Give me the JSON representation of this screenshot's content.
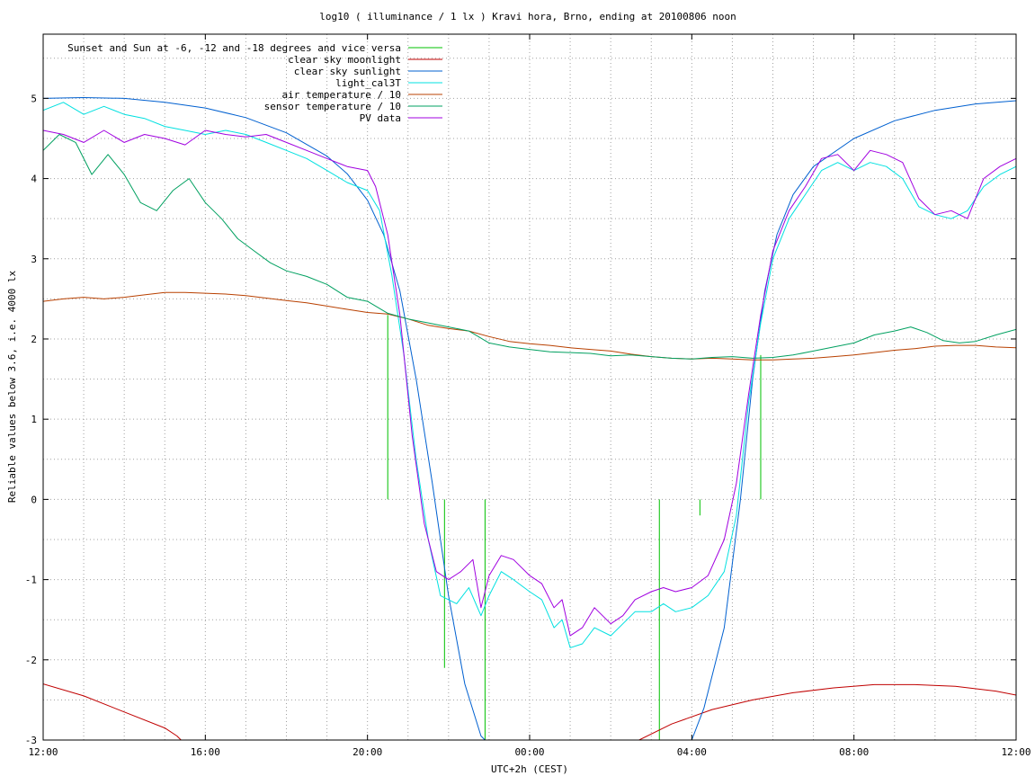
{
  "chart_data": {
    "type": "line",
    "title": "log10 ( illuminance / 1 lx ) Kravi hora, Brno, ending at 20100806 noon",
    "xlabel": "UTC+2h (CEST)",
    "ylabel": "Reliable values below 3.6, i.e. 4000 lx",
    "x_unit": "hours after 12:00",
    "xlim": [
      0,
      24
    ],
    "ylim": [
      -3,
      5.8
    ],
    "x_ticks": [
      {
        "x": 0,
        "label": "12:00"
      },
      {
        "x": 4,
        "label": "16:00"
      },
      {
        "x": 8,
        "label": "20:00"
      },
      {
        "x": 12,
        "label": "00:00"
      },
      {
        "x": 16,
        "label": "04:00"
      },
      {
        "x": 20,
        "label": "08:00"
      },
      {
        "x": 24,
        "label": "12:00"
      }
    ],
    "x_grid_step": 1,
    "y_ticks": [
      {
        "y": -3,
        "label": "-3"
      },
      {
        "y": -2,
        "label": "-2"
      },
      {
        "y": -1,
        "label": "-1"
      },
      {
        "y": 0,
        "label": "0"
      },
      {
        "y": 1,
        "label": "1"
      },
      {
        "y": 2,
        "label": "2"
      },
      {
        "y": 3,
        "label": "3"
      },
      {
        "y": 4,
        "label": "4"
      },
      {
        "y": 5,
        "label": "5"
      }
    ],
    "y_grid_step": 0.5,
    "grid": true,
    "legend_position": "top-left",
    "series": [
      {
        "name": "Sunset and Sun at -6, -12 and -18 degrees and vice versa",
        "color": "#00c000",
        "style": "impulses",
        "points": [
          [
            8.5,
            2.3
          ],
          [
            9.9,
            -2.1
          ],
          [
            10.9,
            -3
          ],
          [
            15.2,
            -3
          ],
          [
            16.2,
            -0.2
          ],
          [
            17.7,
            1.8
          ]
        ],
        "base": 0
      },
      {
        "name": "clear sky moonlight",
        "color": "#c00000",
        "style": "line",
        "points": [
          [
            0,
            -2.3
          ],
          [
            1,
            -2.45
          ],
          [
            2,
            -2.65
          ],
          [
            3,
            -2.85
          ],
          [
            3.3,
            -2.95
          ],
          [
            3.4,
            -3
          ],
          [
            14.7,
            -3
          ],
          [
            15.5,
            -2.8
          ],
          [
            16.5,
            -2.62
          ],
          [
            17.5,
            -2.5
          ],
          [
            18.5,
            -2.41
          ],
          [
            19.5,
            -2.35
          ],
          [
            20.5,
            -2.31
          ],
          [
            21.5,
            -2.31
          ],
          [
            22.5,
            -2.33
          ],
          [
            23.5,
            -2.39
          ],
          [
            24,
            -2.44
          ]
        ]
      },
      {
        "name": "clear sky sunlight",
        "color": "#0060d0",
        "style": "line",
        "points": [
          [
            0,
            5.0
          ],
          [
            1,
            5.01
          ],
          [
            2,
            5.0
          ],
          [
            3,
            4.95
          ],
          [
            4,
            4.88
          ],
          [
            5,
            4.76
          ],
          [
            6,
            4.57
          ],
          [
            7,
            4.28
          ],
          [
            7.5,
            4.06
          ],
          [
            8,
            3.73
          ],
          [
            8.4,
            3.3
          ],
          [
            8.8,
            2.6
          ],
          [
            9.2,
            1.5
          ],
          [
            9.6,
            0.2
          ],
          [
            10,
            -1.2
          ],
          [
            10.4,
            -2.3
          ],
          [
            10.8,
            -2.95
          ],
          [
            10.9,
            -3
          ],
          [
            16.0,
            -3
          ],
          [
            16.3,
            -2.6
          ],
          [
            16.8,
            -1.6
          ],
          [
            17.2,
            0.0
          ],
          [
            17.5,
            1.5
          ],
          [
            17.8,
            2.6
          ],
          [
            18.1,
            3.3
          ],
          [
            18.5,
            3.8
          ],
          [
            19,
            4.15
          ],
          [
            20,
            4.5
          ],
          [
            21,
            4.72
          ],
          [
            22,
            4.85
          ],
          [
            23,
            4.93
          ],
          [
            24,
            4.97
          ]
        ]
      },
      {
        "name": "light_cal3T",
        "color": "#00e0e0",
        "style": "line",
        "points": [
          [
            0,
            4.85
          ],
          [
            0.5,
            4.95
          ],
          [
            1,
            4.8
          ],
          [
            1.5,
            4.9
          ],
          [
            2,
            4.8
          ],
          [
            2.5,
            4.75
          ],
          [
            3,
            4.65
          ],
          [
            3.5,
            4.6
          ],
          [
            4,
            4.55
          ],
          [
            4.5,
            4.6
          ],
          [
            5,
            4.55
          ],
          [
            5.5,
            4.45
          ],
          [
            6,
            4.35
          ],
          [
            6.5,
            4.25
          ],
          [
            7,
            4.1
          ],
          [
            7.5,
            3.95
          ],
          [
            8,
            3.85
          ],
          [
            8.3,
            3.6
          ],
          [
            8.6,
            2.8
          ],
          [
            8.9,
            1.8
          ],
          [
            9.2,
            0.5
          ],
          [
            9.5,
            -0.5
          ],
          [
            9.8,
            -1.2
          ],
          [
            10.2,
            -1.3
          ],
          [
            10.5,
            -1.1
          ],
          [
            10.8,
            -1.45
          ],
          [
            11,
            -1.2
          ],
          [
            11.3,
            -0.9
          ],
          [
            11.6,
            -1.0
          ],
          [
            12,
            -1.15
          ],
          [
            12.3,
            -1.25
          ],
          [
            12.6,
            -1.6
          ],
          [
            12.8,
            -1.5
          ],
          [
            13,
            -1.85
          ],
          [
            13.3,
            -1.8
          ],
          [
            13.6,
            -1.6
          ],
          [
            14,
            -1.7
          ],
          [
            14.3,
            -1.55
          ],
          [
            14.6,
            -1.4
          ],
          [
            15,
            -1.4
          ],
          [
            15.3,
            -1.3
          ],
          [
            15.6,
            -1.4
          ],
          [
            16,
            -1.35
          ],
          [
            16.4,
            -1.2
          ],
          [
            16.8,
            -0.9
          ],
          [
            17.1,
            -0.2
          ],
          [
            17.4,
            1.2
          ],
          [
            17.7,
            2.2
          ],
          [
            18.0,
            3.0
          ],
          [
            18.4,
            3.5
          ],
          [
            18.8,
            3.8
          ],
          [
            19.2,
            4.1
          ],
          [
            19.6,
            4.2
          ],
          [
            20,
            4.1
          ],
          [
            20.4,
            4.2
          ],
          [
            20.8,
            4.15
          ],
          [
            21.2,
            4.0
          ],
          [
            21.6,
            3.65
          ],
          [
            22,
            3.55
          ],
          [
            22.4,
            3.5
          ],
          [
            22.8,
            3.6
          ],
          [
            23.2,
            3.9
          ],
          [
            23.6,
            4.05
          ],
          [
            24,
            4.15
          ]
        ]
      },
      {
        "name": "air temperature / 10",
        "color": "#b84000",
        "style": "line",
        "points": [
          [
            0,
            2.47
          ],
          [
            0.5,
            2.5
          ],
          [
            1,
            2.52
          ],
          [
            1.5,
            2.5
          ],
          [
            2,
            2.52
          ],
          [
            2.5,
            2.55
          ],
          [
            3,
            2.58
          ],
          [
            3.5,
            2.58
          ],
          [
            4,
            2.57
          ],
          [
            4.5,
            2.56
          ],
          [
            5,
            2.54
          ],
          [
            5.5,
            2.51
          ],
          [
            6,
            2.48
          ],
          [
            6.5,
            2.45
          ],
          [
            7,
            2.41
          ],
          [
            7.5,
            2.37
          ],
          [
            8,
            2.33
          ],
          [
            8.5,
            2.31
          ],
          [
            9,
            2.25
          ],
          [
            9.5,
            2.17
          ],
          [
            10,
            2.13
          ],
          [
            10.5,
            2.1
          ],
          [
            11,
            2.03
          ],
          [
            11.5,
            1.97
          ],
          [
            12,
            1.94
          ],
          [
            12.5,
            1.92
          ],
          [
            13,
            1.89
          ],
          [
            13.5,
            1.87
          ],
          [
            14,
            1.85
          ],
          [
            14.5,
            1.81
          ],
          [
            15,
            1.78
          ],
          [
            15.5,
            1.76
          ],
          [
            16,
            1.75
          ],
          [
            16.5,
            1.76
          ],
          [
            17,
            1.75
          ],
          [
            17.5,
            1.74
          ],
          [
            18,
            1.74
          ],
          [
            18.5,
            1.75
          ],
          [
            19,
            1.76
          ],
          [
            19.5,
            1.78
          ],
          [
            20,
            1.8
          ],
          [
            20.5,
            1.83
          ],
          [
            21,
            1.86
          ],
          [
            21.5,
            1.88
          ],
          [
            22,
            1.91
          ],
          [
            22.5,
            1.92
          ],
          [
            23,
            1.92
          ],
          [
            23.5,
            1.9
          ],
          [
            24,
            1.89
          ]
        ]
      },
      {
        "name": "sensor temperature / 10",
        "color": "#00a060",
        "style": "line",
        "points": [
          [
            0,
            4.35
          ],
          [
            0.4,
            4.55
          ],
          [
            0.8,
            4.45
          ],
          [
            1.2,
            4.05
          ],
          [
            1.6,
            4.3
          ],
          [
            2,
            4.05
          ],
          [
            2.4,
            3.7
          ],
          [
            2.8,
            3.6
          ],
          [
            3.2,
            3.85
          ],
          [
            3.6,
            4.0
          ],
          [
            4,
            3.7
          ],
          [
            4.4,
            3.5
          ],
          [
            4.8,
            3.25
          ],
          [
            5.2,
            3.1
          ],
          [
            5.6,
            2.95
          ],
          [
            6,
            2.85
          ],
          [
            6.5,
            2.78
          ],
          [
            7,
            2.68
          ],
          [
            7.5,
            2.52
          ],
          [
            8,
            2.47
          ],
          [
            8.5,
            2.32
          ],
          [
            9,
            2.25
          ],
          [
            9.5,
            2.2
          ],
          [
            10,
            2.15
          ],
          [
            10.5,
            2.1
          ],
          [
            11,
            1.95
          ],
          [
            11.5,
            1.9
          ],
          [
            12,
            1.87
          ],
          [
            12.5,
            1.84
          ],
          [
            13,
            1.83
          ],
          [
            13.5,
            1.82
          ],
          [
            14,
            1.79
          ],
          [
            14.5,
            1.8
          ],
          [
            15,
            1.78
          ],
          [
            15.5,
            1.76
          ],
          [
            16,
            1.75
          ],
          [
            16.5,
            1.77
          ],
          [
            17,
            1.78
          ],
          [
            17.5,
            1.76
          ],
          [
            18,
            1.77
          ],
          [
            18.5,
            1.8
          ],
          [
            19,
            1.85
          ],
          [
            19.5,
            1.9
          ],
          [
            20,
            1.95
          ],
          [
            20.5,
            2.05
          ],
          [
            21,
            2.1
          ],
          [
            21.4,
            2.15
          ],
          [
            21.8,
            2.08
          ],
          [
            22.2,
            1.98
          ],
          [
            22.6,
            1.95
          ],
          [
            23,
            1.97
          ],
          [
            23.5,
            2.05
          ],
          [
            24,
            2.12
          ]
        ]
      },
      {
        "name": "PV data",
        "color": "#a000e0",
        "style": "line",
        "points": [
          [
            0,
            4.6
          ],
          [
            0.5,
            4.55
          ],
          [
            1,
            4.45
          ],
          [
            1.5,
            4.6
          ],
          [
            2,
            4.45
          ],
          [
            2.5,
            4.55
          ],
          [
            3,
            4.5
          ],
          [
            3.5,
            4.42
          ],
          [
            4,
            4.6
          ],
          [
            4.5,
            4.55
          ],
          [
            5,
            4.52
          ],
          [
            5.5,
            4.55
          ],
          [
            6,
            4.45
          ],
          [
            6.5,
            4.35
          ],
          [
            7,
            4.25
          ],
          [
            7.5,
            4.15
          ],
          [
            8,
            4.1
          ],
          [
            8.2,
            3.9
          ],
          [
            8.5,
            3.3
          ],
          [
            8.8,
            2.3
          ],
          [
            9.1,
            0.8
          ],
          [
            9.4,
            -0.3
          ],
          [
            9.7,
            -0.9
          ],
          [
            10,
            -1.0
          ],
          [
            10.3,
            -0.9
          ],
          [
            10.6,
            -0.75
          ],
          [
            10.8,
            -1.35
          ],
          [
            11,
            -0.95
          ],
          [
            11.3,
            -0.7
          ],
          [
            11.6,
            -0.75
          ],
          [
            12,
            -0.95
          ],
          [
            12.3,
            -1.05
          ],
          [
            12.6,
            -1.35
          ],
          [
            12.8,
            -1.25
          ],
          [
            13,
            -1.7
          ],
          [
            13.3,
            -1.6
          ],
          [
            13.6,
            -1.35
          ],
          [
            14,
            -1.55
          ],
          [
            14.3,
            -1.45
          ],
          [
            14.6,
            -1.25
          ],
          [
            15,
            -1.15
          ],
          [
            15.3,
            -1.1
          ],
          [
            15.6,
            -1.15
          ],
          [
            16,
            -1.1
          ],
          [
            16.4,
            -0.95
          ],
          [
            16.8,
            -0.5
          ],
          [
            17.1,
            0.2
          ],
          [
            17.4,
            1.3
          ],
          [
            17.7,
            2.3
          ],
          [
            18.0,
            3.1
          ],
          [
            18.4,
            3.6
          ],
          [
            18.8,
            3.9
          ],
          [
            19.2,
            4.25
          ],
          [
            19.6,
            4.3
          ],
          [
            20,
            4.1
          ],
          [
            20.4,
            4.35
          ],
          [
            20.8,
            4.3
          ],
          [
            21.2,
            4.2
          ],
          [
            21.6,
            3.75
          ],
          [
            22,
            3.55
          ],
          [
            22.4,
            3.6
          ],
          [
            22.8,
            3.5
          ],
          [
            23.2,
            4.0
          ],
          [
            23.6,
            4.15
          ],
          [
            24,
            4.25
          ]
        ]
      }
    ]
  }
}
